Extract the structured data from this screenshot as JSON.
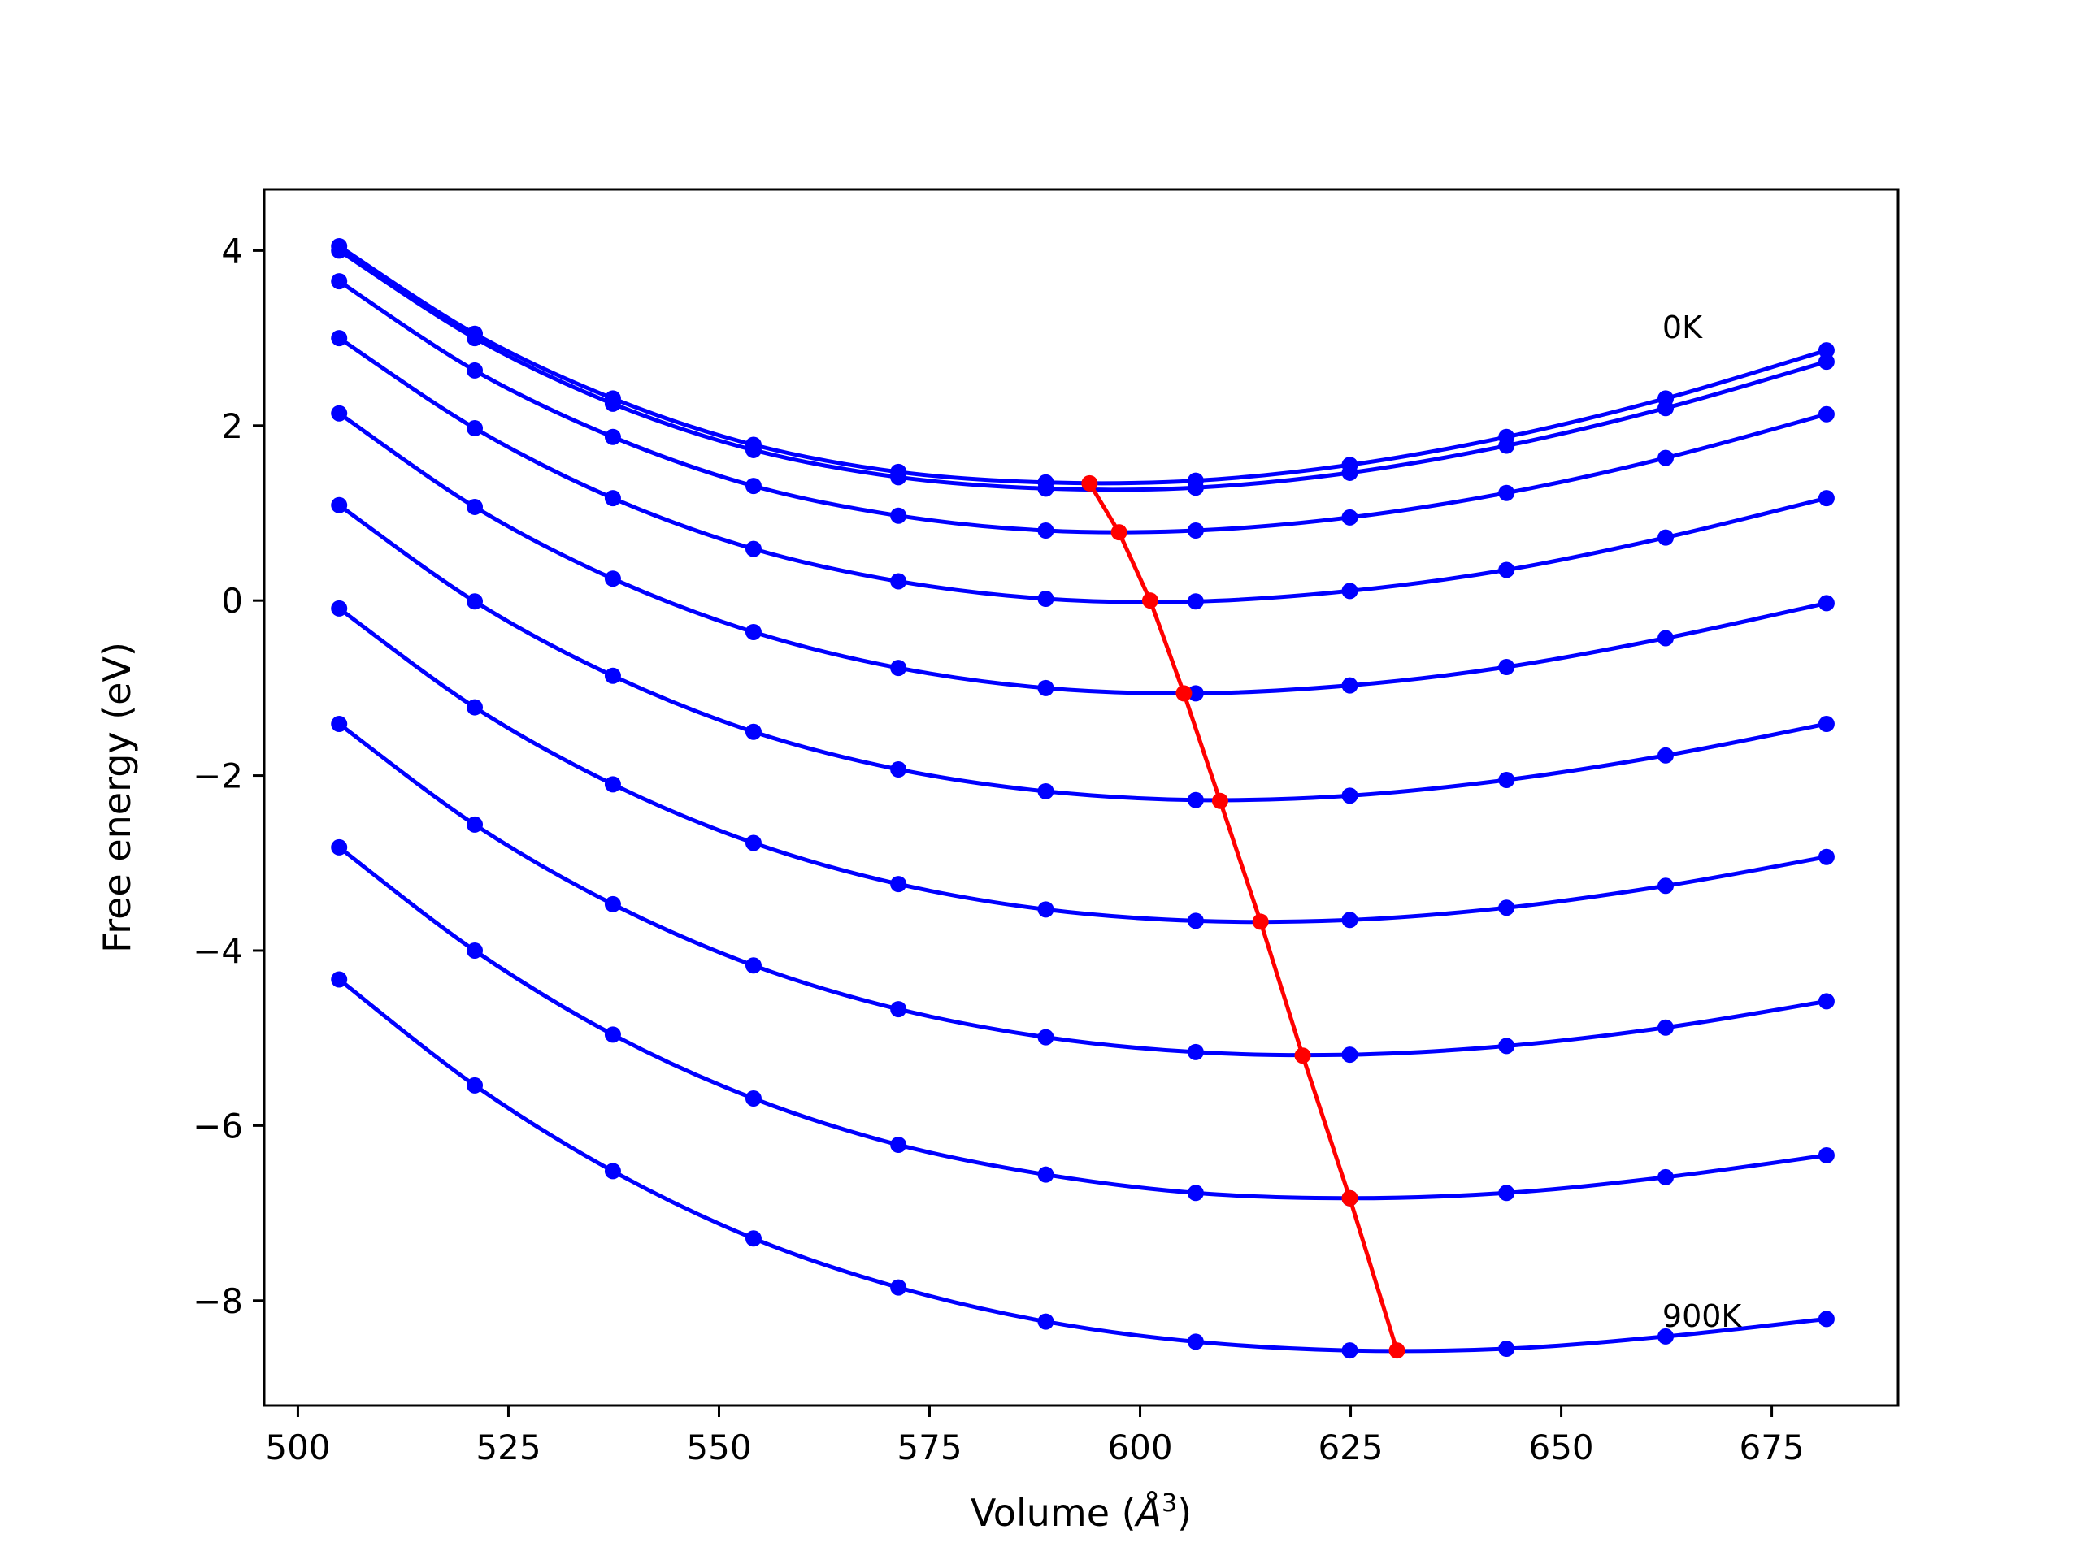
{
  "chart_data": {
    "type": "line",
    "title": "",
    "xlabel": "Volume (",
    "xlabel_symbol": "Å",
    "xlabel_sup": "3",
    "xlabel_close": ")",
    "ylabel": "Free energy (eV)",
    "xlim": [
      496,
      690
    ],
    "ylim": [
      -9.2,
      4.7
    ],
    "xticks": [
      500,
      525,
      550,
      575,
      600,
      625,
      650,
      675
    ],
    "xtick_labels": [
      "500",
      "525",
      "550",
      "575",
      "600",
      "625",
      "650",
      "675"
    ],
    "yticks": [
      4,
      2,
      0,
      -2,
      -4,
      -6,
      -8
    ],
    "ytick_labels": [
      "4",
      "2",
      "0",
      "−2",
      "−4",
      "−6",
      "−8"
    ],
    "grid": false,
    "colors": {
      "series": "#0000ff",
      "minimum": "#ff0000",
      "axes": "#000000"
    },
    "annotations": [
      {
        "text": "0K",
        "x": 662,
        "y": 3.0
      },
      {
        "text": "900K",
        "x": 662,
        "y": -8.3
      }
    ],
    "volumes": [
      504.9,
      521.0,
      537.4,
      554.1,
      571.3,
      588.8,
      606.6,
      624.9,
      643.5,
      662.4,
      681.5
    ],
    "series": [
      {
        "name": "0K",
        "values": [
          4.05,
          3.05,
          2.31,
          1.78,
          1.47,
          1.35,
          1.37,
          1.55,
          1.87,
          2.31,
          2.86
        ]
      },
      {
        "values": [
          4.0,
          3.0,
          2.25,
          1.72,
          1.41,
          1.28,
          1.29,
          1.46,
          1.77,
          2.2,
          2.73
        ]
      },
      {
        "values": [
          3.65,
          2.63,
          1.87,
          1.31,
          0.97,
          0.8,
          0.8,
          0.95,
          1.23,
          1.63,
          2.13
        ]
      },
      {
        "values": [
          3.0,
          1.97,
          1.17,
          0.59,
          0.22,
          0.02,
          -0.01,
          0.11,
          0.35,
          0.72,
          1.17
        ]
      },
      {
        "values": [
          2.14,
          1.07,
          0.25,
          -0.36,
          -0.77,
          -1.0,
          -1.06,
          -0.97,
          -0.76,
          -0.43,
          -0.03
        ]
      },
      {
        "values": [
          1.09,
          -0.01,
          -0.86,
          -1.5,
          -1.93,
          -2.18,
          -2.28,
          -2.23,
          -2.05,
          -1.77,
          -1.41
        ]
      },
      {
        "values": [
          -0.09,
          -1.22,
          -2.1,
          -2.77,
          -3.24,
          -3.53,
          -3.66,
          -3.65,
          -3.51,
          -3.26,
          -2.93
        ]
      },
      {
        "values": [
          -1.41,
          -2.56,
          -3.47,
          -4.17,
          -4.67,
          -4.99,
          -5.16,
          -5.19,
          -5.09,
          -4.88,
          -4.58
        ]
      },
      {
        "values": [
          -2.82,
          -4.0,
          -4.96,
          -5.69,
          -6.22,
          -6.56,
          -6.77,
          -6.83,
          -6.77,
          -6.59,
          -6.34
        ]
      },
      {
        "name": "900K",
        "values": [
          -4.33,
          -5.54,
          -6.52,
          -7.29,
          -7.85,
          -8.24,
          -8.47,
          -8.57,
          -8.55,
          -8.41,
          -8.21
        ]
      }
    ],
    "minimum_line": {
      "x": [
        594.0,
        597.5,
        601.2,
        605.2,
        609.5,
        614.3,
        619.3,
        624.9,
        630.5
      ],
      "y": [
        1.34,
        0.78,
        0.0,
        -1.06,
        -2.29,
        -3.67,
        -5.2,
        -6.83,
        -8.57
      ]
    }
  }
}
